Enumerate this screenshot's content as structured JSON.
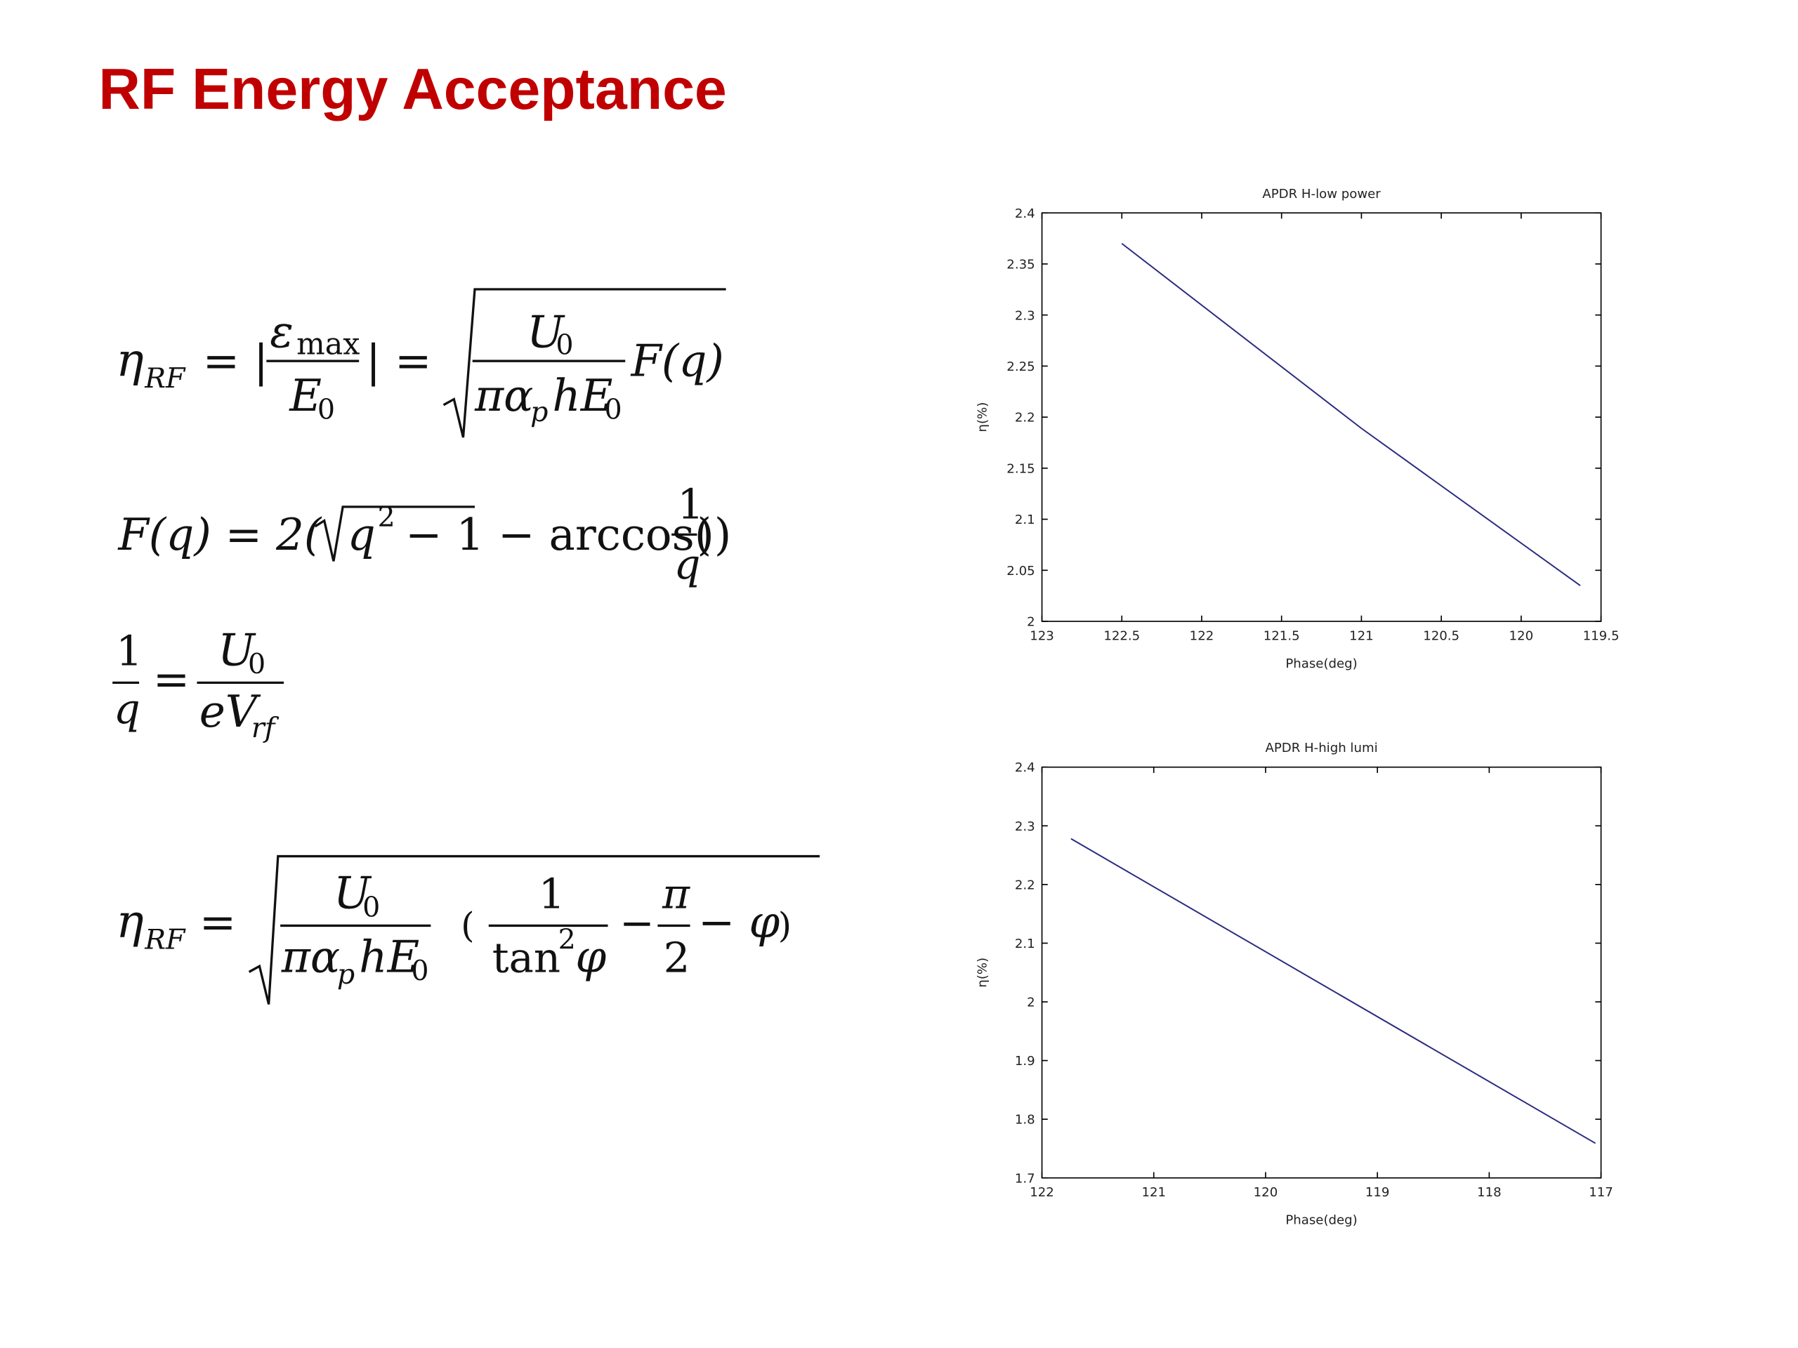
{
  "title": "RF Energy Acceptance",
  "equations": [
    {
      "parts": [
        "η",
        "RF",
        "= |",
        "ε",
        "max",
        "E",
        "0",
        "| =",
        "U",
        "0",
        "πα",
        "p",
        "hE",
        "0",
        "F(q)"
      ]
    },
    {
      "parts": [
        "F(q) = 2(",
        "q",
        "2",
        "− 1 − arccos(",
        "1",
        "q",
        "))"
      ]
    },
    {
      "parts": [
        "1",
        "q",
        "=",
        "U",
        "0",
        "eV",
        "rf"
      ]
    },
    {
      "parts": [
        "η",
        "RF",
        "=",
        "U",
        "0",
        "πα",
        "p",
        "hE",
        "0",
        "(",
        "1",
        "tan",
        "2",
        "φ",
        "−",
        "π",
        "2",
        "− φ",
        ")"
      ]
    }
  ],
  "chart_data": [
    {
      "type": "line",
      "title": "APDR H-low power",
      "x_label": "Phase(deg)",
      "y_label": "η(%)",
      "x": [
        122.5,
        121,
        119.63
      ],
      "values": [
        2.37,
        2.189,
        2.035
      ],
      "color": "#2a2a80",
      "xlim": [
        123,
        119.5
      ],
      "xticks": [
        123,
        122.5,
        122,
        121.5,
        121,
        120.5,
        120,
        119.5
      ],
      "ylim": [
        2,
        2.4
      ],
      "yticks": [
        2,
        2.05,
        2.1,
        2.15,
        2.2,
        2.25,
        2.3,
        2.35,
        2.4
      ]
    },
    {
      "type": "line",
      "title": "APDR H-high lumi",
      "x_label": "Phase(deg)",
      "y_label": "η(%)",
      "x": [
        121.74,
        117.05
      ],
      "values": [
        2.278,
        1.759
      ],
      "color": "#2a2a80",
      "xlim": [
        122,
        117
      ],
      "xticks": [
        122,
        121,
        120,
        119,
        118,
        117
      ],
      "ylim": [
        1.7,
        2.4
      ],
      "yticks": [
        1.7,
        1.8,
        1.9,
        2,
        2.1,
        2.2,
        2.3,
        2.4
      ]
    }
  ]
}
